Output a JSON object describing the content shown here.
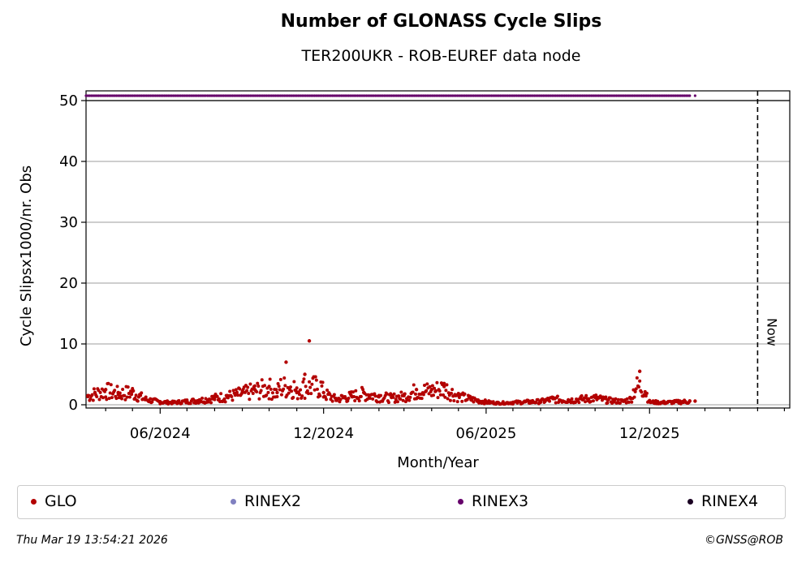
{
  "header": {
    "title": "Number of GLONASS Cycle Slips",
    "subtitle": "TER200UKR - ROB-EUREF data node"
  },
  "footer": {
    "timestamp": "Thu Mar 19 13:54:21 2026",
    "credit": "©GNSS@ROB"
  },
  "legend": {
    "items": [
      {
        "label": "GLO",
        "color": "#b30000"
      },
      {
        "label": "RINEX2",
        "color": "#8080c0"
      },
      {
        "label": "RINEX3",
        "color": "#66006b"
      },
      {
        "label": "RINEX4",
        "color": "#1a0022"
      }
    ]
  },
  "chart_data": {
    "type": "scatter",
    "title": "Number of GLONASS Cycle Slips",
    "subtitle": "TER200UKR - ROB-EUREF data node",
    "xlabel": "Month/Year",
    "ylabel": "Cycle Slipsx1000/nr. Obs",
    "xlim": [
      "2024-03-10",
      "2026-05-07"
    ],
    "ylim": [
      0,
      52
    ],
    "yticks": [
      0,
      10,
      20,
      30,
      40,
      50
    ],
    "xticks": [
      "06/2024",
      "12/2024",
      "06/2025",
      "12/2025"
    ],
    "grid": "y",
    "now_marker": {
      "date": "2026-04-01",
      "label": "Now"
    },
    "rinex3_band": {
      "y": 51,
      "start": "2024-03-10",
      "end": "2026-01-15",
      "extra_point": "2026-01-21"
    },
    "series": [
      {
        "name": "GLO",
        "color": "#b30000",
        "x": [
          "2024-03-12",
          "2024-03-20",
          "2024-04-01",
          "2024-04-15",
          "2024-05-01",
          "2024-05-15",
          "2024-06-01",
          "2024-06-15",
          "2024-07-01",
          "2024-07-15",
          "2024-08-01",
          "2024-08-15",
          "2024-09-01",
          "2024-09-15",
          "2024-10-01",
          "2024-10-10",
          "2024-10-20",
          "2024-11-01",
          "2024-11-10",
          "2024-11-15",
          "2024-12-01",
          "2024-12-15",
          "2025-01-01",
          "2025-01-15",
          "2025-02-01",
          "2025-02-15",
          "2025-03-01",
          "2025-03-15",
          "2025-04-01",
          "2025-04-15",
          "2025-05-01",
          "2025-05-15",
          "2025-06-01",
          "2025-06-15",
          "2025-07-01",
          "2025-07-15",
          "2025-08-01",
          "2025-08-15",
          "2025-09-01",
          "2025-09-15",
          "2025-10-01",
          "2025-10-15",
          "2025-11-01",
          "2025-11-10",
          "2025-11-20",
          "2025-12-01",
          "2025-12-15",
          "2026-01-01",
          "2026-01-15",
          "2026-01-21"
        ],
        "y": [
          1.5,
          2.0,
          2.5,
          2.0,
          2.2,
          1.0,
          0.5,
          0.4,
          0.6,
          0.8,
          1.2,
          1.5,
          2.0,
          2.5,
          3.0,
          2.0,
          7.0,
          2.0,
          5.0,
          10.5,
          2.0,
          1.0,
          1.5,
          2.0,
          1.5,
          1.2,
          1.5,
          2.5,
          2.5,
          3.0,
          1.5,
          1.0,
          0.5,
          0.3,
          0.4,
          0.5,
          0.6,
          1.0,
          0.8,
          1.0,
          1.2,
          0.8,
          0.6,
          1.0,
          5.5,
          0.5,
          0.4,
          0.5,
          0.6,
          0.6
        ]
      },
      {
        "name": "RINEX2",
        "color": "#8080c0",
        "x": [],
        "y": []
      },
      {
        "name": "RINEX3",
        "color": "#66006b",
        "x": [],
        "y": []
      },
      {
        "name": "RINEX4",
        "color": "#1a0022",
        "x": [],
        "y": []
      }
    ]
  }
}
